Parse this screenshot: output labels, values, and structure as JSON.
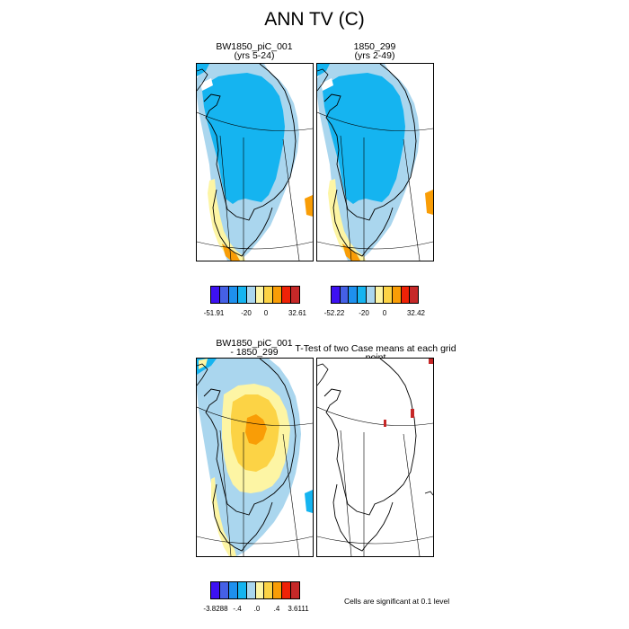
{
  "page": {
    "title": "ANN TV (C)"
  },
  "panels": {
    "case1": {
      "title_line1": "BW1850_piC_001",
      "title_line2": "(yrs 5-24)"
    },
    "case2": {
      "title_line1": "1850_299",
      "title_line2": "(yrs 2-49)"
    },
    "diff": {
      "title_line1": "BW1850_piC_001",
      "title_line2": "- 1850_299"
    },
    "ttest": {
      "title": "T-Test of two Case means at each grid point"
    }
  },
  "colorbars": {
    "case1": {
      "colors": [
        "#3d11f2",
        "#4560e6",
        "#1e90ee",
        "#15b4f0",
        "#aad6ee",
        "#fdf5a4",
        "#fcd345",
        "#f99d06",
        "#ef2207",
        "#c62828"
      ],
      "labels": [
        "-51.91",
        "-20",
        "0",
        "32.61"
      ]
    },
    "case2": {
      "colors": [
        "#3d11f2",
        "#4560e6",
        "#1e90ee",
        "#15b4f0",
        "#aad6ee",
        "#fdf5a4",
        "#fcd345",
        "#f99d06",
        "#ef2207",
        "#c62828"
      ],
      "labels": [
        "-52.22",
        "-20",
        "0",
        "32.42"
      ]
    },
    "diff": {
      "colors": [
        "#3d11f2",
        "#4560e6",
        "#1e90ee",
        "#15b4f0",
        "#aad6ee",
        "#fdf5a4",
        "#fcd345",
        "#f99d06",
        "#ef2207",
        "#c62828"
      ],
      "labels": [
        "-3.8288",
        "-.4",
        ".0",
        ".4",
        "3.6111"
      ]
    }
  },
  "footnote": "Cells are significant at 0.1 level"
}
